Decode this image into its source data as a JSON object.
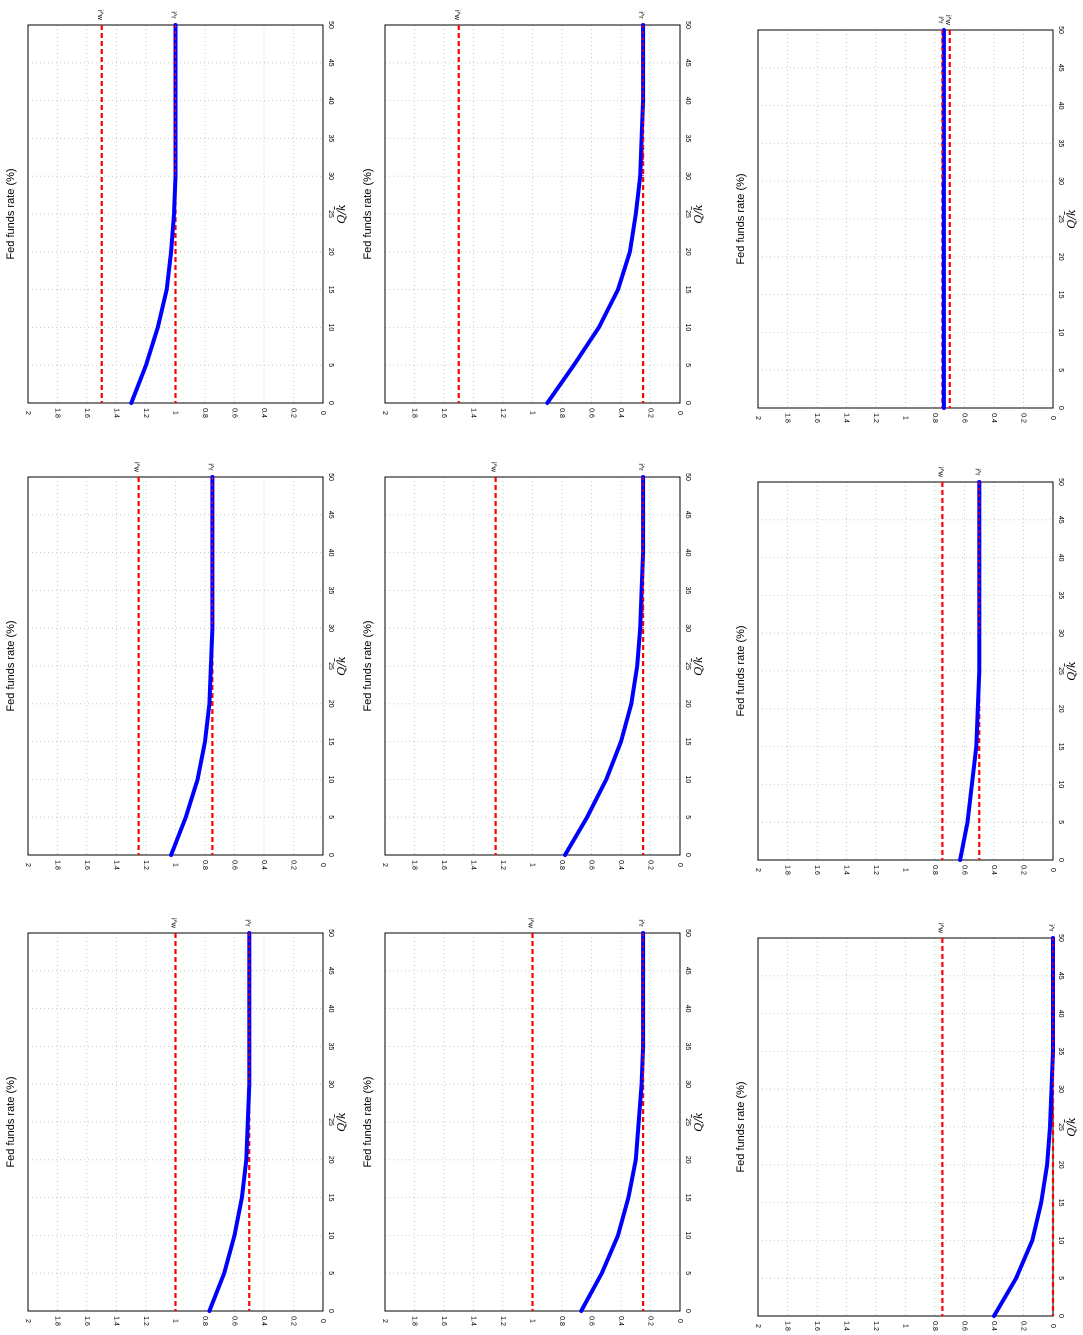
{
  "figure": {
    "x_axis_label": "Q/k̄",
    "y_axis_label": "Fed funds rate (%)",
    "label_upper": "i^w",
    "label_lower": "i^r"
  },
  "chart_data": [
    {
      "type": "line",
      "xlim": [
        0,
        50
      ],
      "ylim": [
        0,
        2
      ],
      "grid": true,
      "xticks": [
        0,
        5,
        10,
        15,
        20,
        25,
        30,
        35,
        40,
        45,
        50
      ],
      "yticks": [
        0,
        0.2,
        0.4,
        0.6,
        0.8,
        1,
        1.2,
        1.4,
        1.6,
        1.8,
        2
      ],
      "x": [
        0,
        5,
        10,
        15,
        20,
        25,
        30,
        35,
        40,
        45,
        50
      ],
      "values": [
        1.3,
        1.2,
        1.12,
        1.06,
        1.03,
        1.01,
        1.0,
        1.0,
        1.0,
        1.0,
        1.0
      ],
      "i_w": 1.5,
      "i_r": 1.0
    },
    {
      "type": "line",
      "xlim": [
        0,
        50
      ],
      "ylim": [
        0,
        2
      ],
      "grid": true,
      "xticks": [
        0,
        5,
        10,
        15,
        20,
        25,
        30,
        35,
        40,
        45,
        50
      ],
      "yticks": [
        0,
        0.2,
        0.4,
        0.6,
        0.8,
        1,
        1.2,
        1.4,
        1.6,
        1.8,
        2
      ],
      "x": [
        0,
        5,
        10,
        15,
        20,
        25,
        30,
        35,
        40,
        45,
        50
      ],
      "values": [
        0.9,
        0.72,
        0.55,
        0.42,
        0.34,
        0.3,
        0.27,
        0.26,
        0.25,
        0.25,
        0.25
      ],
      "i_w": 1.5,
      "i_r": 0.25
    },
    {
      "type": "line",
      "xlim": [
        0,
        50
      ],
      "ylim": [
        0,
        2
      ],
      "grid": true,
      "xticks": [
        0,
        5,
        10,
        15,
        20,
        25,
        30,
        35,
        40,
        45,
        50
      ],
      "yticks": [
        0,
        0.2,
        0.4,
        0.6,
        0.8,
        1,
        1.2,
        1.4,
        1.6,
        1.8,
        2
      ],
      "x": [
        0,
        5,
        10,
        15,
        20,
        25,
        30,
        35,
        40,
        45,
        50
      ],
      "values": [
        0.74,
        0.74,
        0.74,
        0.74,
        0.74,
        0.74,
        0.74,
        0.74,
        0.74,
        0.74,
        0.74
      ],
      "i_w": 0.7,
      "i_r": 0.75
    },
    {
      "type": "line",
      "xlim": [
        0,
        50
      ],
      "ylim": [
        0,
        2
      ],
      "grid": true,
      "xticks": [
        0,
        5,
        10,
        15,
        20,
        25,
        30,
        35,
        40,
        45,
        50
      ],
      "yticks": [
        0,
        0.2,
        0.4,
        0.6,
        0.8,
        1,
        1.2,
        1.4,
        1.6,
        1.8,
        2
      ],
      "x": [
        0,
        5,
        10,
        15,
        20,
        25,
        30,
        35,
        40,
        45,
        50
      ],
      "values": [
        1.03,
        0.93,
        0.85,
        0.8,
        0.77,
        0.76,
        0.75,
        0.75,
        0.75,
        0.75,
        0.75
      ],
      "i_w": 1.25,
      "i_r": 0.75
    },
    {
      "type": "line",
      "xlim": [
        0,
        50
      ],
      "ylim": [
        0,
        2
      ],
      "grid": true,
      "xticks": [
        0,
        5,
        10,
        15,
        20,
        25,
        30,
        35,
        40,
        45,
        50
      ],
      "yticks": [
        0,
        0.2,
        0.4,
        0.6,
        0.8,
        1,
        1.2,
        1.4,
        1.6,
        1.8,
        2
      ],
      "x": [
        0,
        5,
        10,
        15,
        20,
        25,
        30,
        35,
        40,
        45,
        50
      ],
      "values": [
        0.78,
        0.63,
        0.5,
        0.4,
        0.33,
        0.29,
        0.27,
        0.26,
        0.25,
        0.25,
        0.25
      ],
      "i_w": 1.25,
      "i_r": 0.25
    },
    {
      "type": "line",
      "xlim": [
        0,
        50
      ],
      "ylim": [
        0,
        2
      ],
      "grid": true,
      "xticks": [
        0,
        5,
        10,
        15,
        20,
        25,
        30,
        35,
        40,
        45,
        50
      ],
      "yticks": [
        0,
        0.2,
        0.4,
        0.6,
        0.8,
        1,
        1.2,
        1.4,
        1.6,
        1.8,
        2
      ],
      "x": [
        0,
        5,
        10,
        15,
        20,
        25,
        30,
        35,
        40,
        45,
        50
      ],
      "values": [
        0.63,
        0.58,
        0.55,
        0.52,
        0.51,
        0.5,
        0.5,
        0.5,
        0.5,
        0.5,
        0.5
      ],
      "i_w": 0.75,
      "i_r": 0.5
    },
    {
      "type": "line",
      "xlim": [
        0,
        50
      ],
      "ylim": [
        0,
        2
      ],
      "grid": true,
      "xticks": [
        0,
        5,
        10,
        15,
        20,
        25,
        30,
        35,
        40,
        45,
        50
      ],
      "yticks": [
        0,
        0.2,
        0.4,
        0.6,
        0.8,
        1,
        1.2,
        1.4,
        1.6,
        1.8,
        2
      ],
      "x": [
        0,
        5,
        10,
        15,
        20,
        25,
        30,
        35,
        40,
        45,
        50
      ],
      "values": [
        0.77,
        0.67,
        0.6,
        0.55,
        0.52,
        0.51,
        0.5,
        0.5,
        0.5,
        0.5,
        0.5
      ],
      "i_w": 1.0,
      "i_r": 0.5
    },
    {
      "type": "line",
      "xlim": [
        0,
        50
      ],
      "ylim": [
        0,
        2
      ],
      "grid": true,
      "xticks": [
        0,
        5,
        10,
        15,
        20,
        25,
        30,
        35,
        40,
        45,
        50
      ],
      "yticks": [
        0,
        0.2,
        0.4,
        0.6,
        0.8,
        1,
        1.2,
        1.4,
        1.6,
        1.8,
        2
      ],
      "x": [
        0,
        5,
        10,
        15,
        20,
        25,
        30,
        35,
        40,
        45,
        50
      ],
      "values": [
        0.67,
        0.53,
        0.42,
        0.35,
        0.3,
        0.28,
        0.26,
        0.25,
        0.25,
        0.25,
        0.25
      ],
      "i_w": 1.0,
      "i_r": 0.25
    },
    {
      "type": "line",
      "xlim": [
        0,
        50
      ],
      "ylim": [
        0,
        2
      ],
      "grid": true,
      "xticks": [
        0,
        5,
        10,
        15,
        20,
        25,
        30,
        35,
        40,
        45,
        50
      ],
      "yticks": [
        0,
        0.2,
        0.4,
        0.6,
        0.8,
        1,
        1.2,
        1.4,
        1.6,
        1.8,
        2
      ],
      "x": [
        0,
        5,
        10,
        15,
        20,
        25,
        30,
        35,
        40,
        45,
        50
      ],
      "values": [
        0.4,
        0.25,
        0.14,
        0.08,
        0.04,
        0.02,
        0.01,
        0.0,
        0.0,
        0.0,
        0.0
      ],
      "i_w": 0.75,
      "i_r": 0.0
    }
  ],
  "colors": {
    "series": "#0000ff",
    "reference": "#ff0000",
    "grid": "#bdbdbd",
    "axis": "#000000"
  }
}
